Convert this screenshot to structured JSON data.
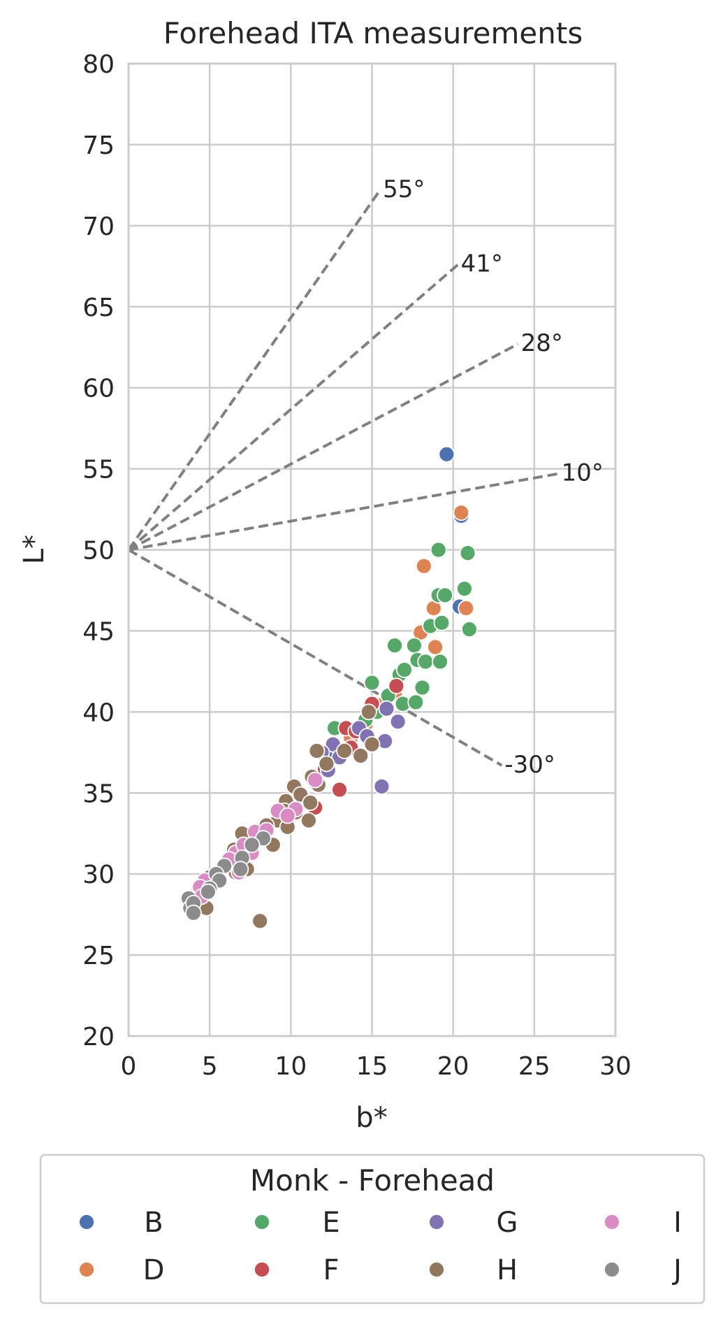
{
  "chart_data": {
    "type": "scatter",
    "title": "Forehead ITA measurements",
    "xlabel": "b*",
    "ylabel": "L*",
    "xlim": [
      0,
      30
    ],
    "ylim": [
      20,
      80
    ],
    "xticks": [
      0,
      5,
      10,
      15,
      20,
      25,
      30
    ],
    "yticks": [
      20,
      25,
      30,
      35,
      40,
      45,
      50,
      55,
      60,
      65,
      70,
      75,
      80
    ],
    "grid": true,
    "reference_lines": [
      {
        "label": "55°",
        "x": [
          0,
          15.5
        ],
        "y": [
          50,
          72.2
        ]
      },
      {
        "label": "41°",
        "x": [
          0,
          20.3
        ],
        "y": [
          50,
          67.6
        ]
      },
      {
        "label": "28°",
        "x": [
          0,
          24.0
        ],
        "y": [
          50,
          62.7
        ]
      },
      {
        "label": "10°",
        "x": [
          0,
          26.5
        ],
        "y": [
          50,
          54.7
        ]
      },
      {
        "label": "-30°",
        "x": [
          0,
          23.0
        ],
        "y": [
          50,
          36.7
        ]
      }
    ],
    "legend": {
      "title": "Monk - Forehead",
      "placement": "below",
      "columns": 4
    },
    "series": [
      {
        "name": "B",
        "color": "#4c72b0",
        "points": [
          [
            19.6,
            55.9
          ],
          [
            20.5,
            52.1
          ],
          [
            20.4,
            46.5
          ],
          [
            12.6,
            37.2
          ]
        ]
      },
      {
        "name": "D",
        "color": "#dd8452",
        "points": [
          [
            20.5,
            52.3
          ],
          [
            18.2,
            49.0
          ],
          [
            18.8,
            46.4
          ],
          [
            20.8,
            46.4
          ],
          [
            18.0,
            44.9
          ],
          [
            18.9,
            44.0
          ],
          [
            16.4,
            41.2
          ],
          [
            15.5,
            40.4
          ],
          [
            14.6,
            39.2
          ],
          [
            13.7,
            38.4
          ]
        ]
      },
      {
        "name": "E",
        "color": "#55a868",
        "points": [
          [
            19.1,
            50.0
          ],
          [
            20.9,
            49.8
          ],
          [
            19.1,
            47.2
          ],
          [
            19.5,
            47.2
          ],
          [
            20.7,
            47.6
          ],
          [
            18.6,
            45.3
          ],
          [
            19.3,
            45.5
          ],
          [
            21.0,
            45.1
          ],
          [
            17.6,
            44.1
          ],
          [
            16.4,
            44.1
          ],
          [
            17.8,
            43.2
          ],
          [
            18.3,
            43.1
          ],
          [
            19.2,
            43.1
          ],
          [
            16.7,
            42.3
          ],
          [
            17.0,
            42.6
          ],
          [
            15.0,
            41.8
          ],
          [
            16.0,
            41.0
          ],
          [
            16.9,
            40.5
          ],
          [
            17.7,
            40.6
          ],
          [
            18.1,
            41.5
          ],
          [
            12.7,
            39.0
          ],
          [
            14.6,
            39.5
          ],
          [
            15.3,
            40.0
          ]
        ]
      },
      {
        "name": "F",
        "color": "#c44e52",
        "points": [
          [
            16.5,
            41.6
          ],
          [
            15.0,
            40.5
          ],
          [
            13.4,
            39.0
          ],
          [
            14.0,
            38.8
          ],
          [
            13.0,
            35.2
          ],
          [
            11.5,
            34.1
          ],
          [
            12.1,
            36.5
          ],
          [
            13.7,
            37.8
          ]
        ]
      },
      {
        "name": "G",
        "color": "#8172b3",
        "points": [
          [
            15.9,
            40.2
          ],
          [
            16.6,
            39.4
          ],
          [
            14.2,
            39.0
          ],
          [
            14.7,
            38.5
          ],
          [
            15.8,
            38.2
          ],
          [
            12.6,
            38.0
          ],
          [
            11.9,
            37.5
          ],
          [
            13.0,
            37.2
          ],
          [
            12.3,
            36.4
          ],
          [
            15.6,
            35.4
          ],
          [
            11.6,
            35.5
          ],
          [
            10.7,
            34.8
          ]
        ]
      },
      {
        "name": "H",
        "color": "#937860",
        "points": [
          [
            14.8,
            40.0
          ],
          [
            11.6,
            37.6
          ],
          [
            13.3,
            37.6
          ],
          [
            15.0,
            38.0
          ],
          [
            14.3,
            37.3
          ],
          [
            12.2,
            36.8
          ],
          [
            11.3,
            36.0
          ],
          [
            10.2,
            35.4
          ],
          [
            11.7,
            35.5
          ],
          [
            10.6,
            34.9
          ],
          [
            9.7,
            34.5
          ],
          [
            11.2,
            34.4
          ],
          [
            9.6,
            33.9
          ],
          [
            9.2,
            33.3
          ],
          [
            10.3,
            33.8
          ],
          [
            11.1,
            33.3
          ],
          [
            8.5,
            33.0
          ],
          [
            9.8,
            32.9
          ],
          [
            8.9,
            31.8
          ],
          [
            7.0,
            32.5
          ],
          [
            6.5,
            31.5
          ],
          [
            7.3,
            31.2
          ],
          [
            6.0,
            30.6
          ],
          [
            6.6,
            30.1
          ],
          [
            7.3,
            30.3
          ],
          [
            5.0,
            29.8
          ],
          [
            4.7,
            28.8
          ],
          [
            4.8,
            27.9
          ],
          [
            8.1,
            27.1
          ]
        ]
      },
      {
        "name": "I",
        "color": "#da8bc3",
        "points": [
          [
            11.5,
            35.8
          ],
          [
            10.3,
            34.0
          ],
          [
            9.2,
            33.9
          ],
          [
            9.8,
            33.6
          ],
          [
            7.8,
            32.6
          ],
          [
            8.5,
            32.7
          ],
          [
            6.6,
            31.3
          ],
          [
            7.1,
            31.8
          ],
          [
            7.6,
            31.3
          ],
          [
            6.2,
            30.9
          ],
          [
            6.8,
            30.1
          ],
          [
            4.7,
            29.6
          ],
          [
            4.4,
            29.2
          ],
          [
            4.5,
            28.6
          ],
          [
            5.8,
            30.4
          ]
        ]
      },
      {
        "name": "J",
        "color": "#8c8c8c",
        "points": [
          [
            8.3,
            32.2
          ],
          [
            7.6,
            31.8
          ],
          [
            7.0,
            31.0
          ],
          [
            6.9,
            30.3
          ],
          [
            5.9,
            30.5
          ],
          [
            5.4,
            30.0
          ],
          [
            5.6,
            29.6
          ],
          [
            5.0,
            29.1
          ],
          [
            4.9,
            28.9
          ],
          [
            3.7,
            28.5
          ],
          [
            3.8,
            27.9
          ],
          [
            4.0,
            28.2
          ],
          [
            4.0,
            27.6
          ]
        ]
      }
    ]
  }
}
